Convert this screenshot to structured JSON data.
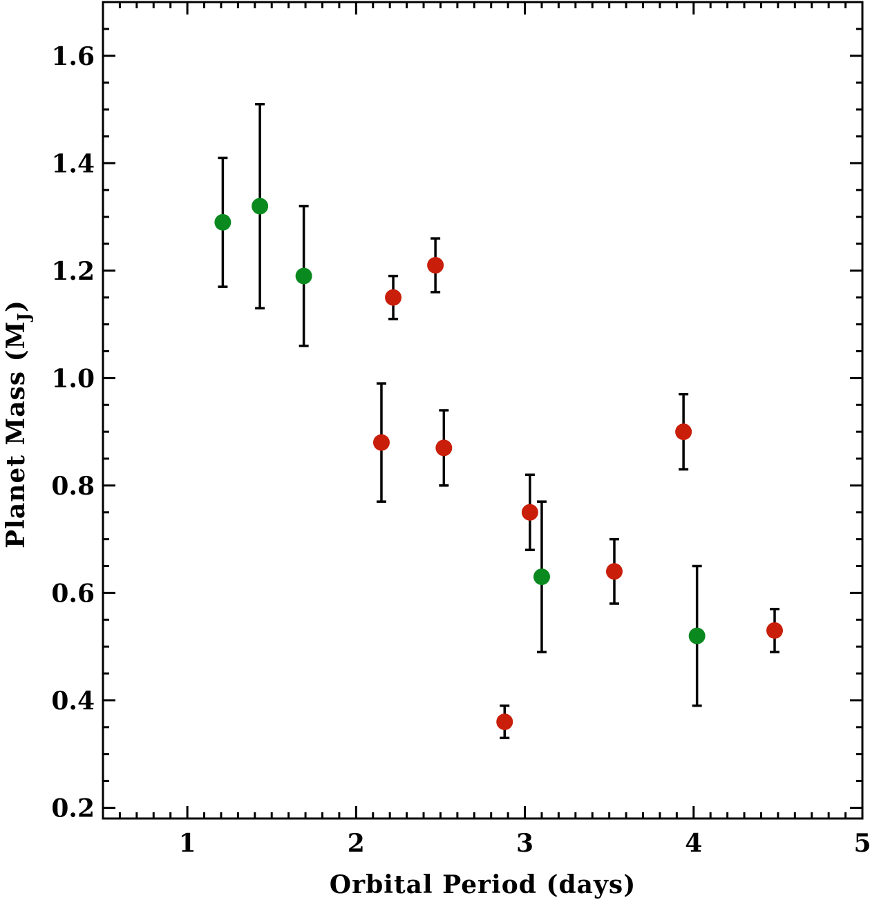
{
  "chart_data": {
    "type": "scatter",
    "title": "",
    "xlabel": "Orbital Period (days)",
    "ylabel_main": "Planet Mass (M",
    "ylabel_sub": "J",
    "ylabel_close": ")",
    "xlim": [
      0.5,
      5.0
    ],
    "ylim": [
      0.18,
      1.7
    ],
    "x_ticks": [
      1,
      2,
      3,
      4,
      5
    ],
    "x_tick_labels": [
      "1",
      "2",
      "3",
      "4",
      "5"
    ],
    "x_minor_step": 0.1,
    "y_ticks": [
      0.2,
      0.4,
      0.6,
      0.8,
      1.0,
      1.2,
      1.4,
      1.6
    ],
    "y_tick_labels": [
      "0.2",
      "0.4",
      "0.6",
      "0.8",
      "1.0",
      "1.2",
      "1.4",
      "1.6"
    ],
    "y_minor_step": 0.05,
    "grid": false,
    "series": [
      {
        "name": "green",
        "color": "#0a8a1e",
        "points": [
          {
            "x": 1.21,
            "y": 1.29,
            "err_low": 1.17,
            "err_high": 1.41
          },
          {
            "x": 1.43,
            "y": 1.32,
            "err_low": 1.13,
            "err_high": 1.51
          },
          {
            "x": 1.69,
            "y": 1.19,
            "err_low": 1.06,
            "err_high": 1.32
          },
          {
            "x": 3.1,
            "y": 0.63,
            "err_low": 0.49,
            "err_high": 0.77
          },
          {
            "x": 4.02,
            "y": 0.52,
            "err_low": 0.39,
            "err_high": 0.65
          }
        ]
      },
      {
        "name": "red",
        "color": "#c81e0a",
        "points": [
          {
            "x": 2.22,
            "y": 1.15,
            "err_low": 1.11,
            "err_high": 1.19
          },
          {
            "x": 2.47,
            "y": 1.21,
            "err_low": 1.16,
            "err_high": 1.26
          },
          {
            "x": 2.15,
            "y": 0.88,
            "err_low": 0.77,
            "err_high": 0.99
          },
          {
            "x": 2.52,
            "y": 0.87,
            "err_low": 0.8,
            "err_high": 0.94
          },
          {
            "x": 3.03,
            "y": 0.75,
            "err_low": 0.68,
            "err_high": 0.82
          },
          {
            "x": 2.88,
            "y": 0.36,
            "err_low": 0.33,
            "err_high": 0.39
          },
          {
            "x": 3.53,
            "y": 0.64,
            "err_low": 0.58,
            "err_high": 0.7
          },
          {
            "x": 3.94,
            "y": 0.9,
            "err_low": 0.83,
            "err_high": 0.97
          },
          {
            "x": 4.48,
            "y": 0.53,
            "err_low": 0.49,
            "err_high": 0.57
          }
        ]
      }
    ]
  }
}
